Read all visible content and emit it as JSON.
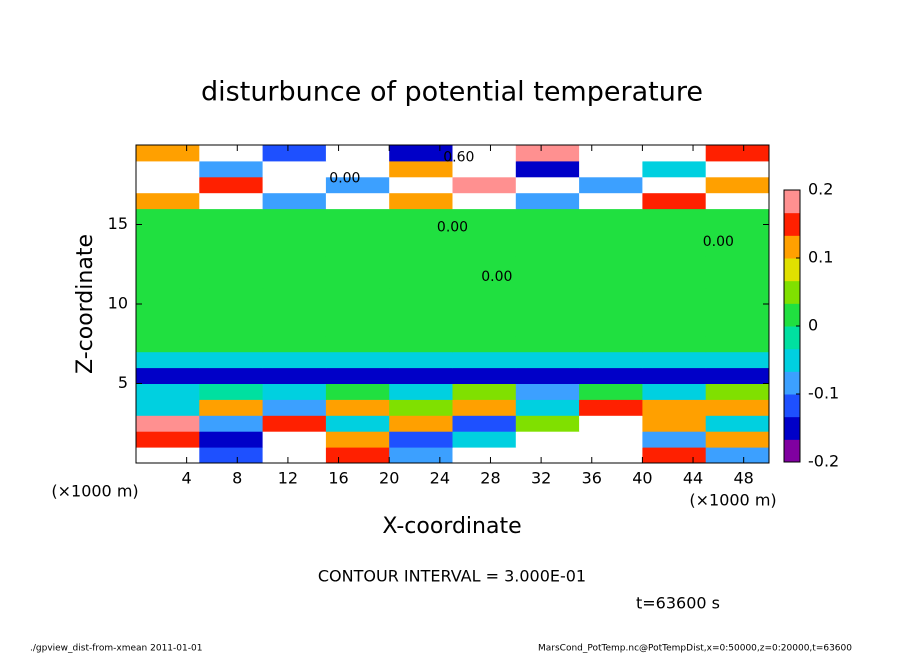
{
  "chart_data": {
    "type": "heatmap",
    "title": "disturbunce of potential temperature",
    "x_label": "X-coordinate",
    "y_label": "Z-coordinate",
    "x_unit": "(×1000 m)",
    "xlim": [
      0,
      50
    ],
    "ylim": [
      0,
      20
    ],
    "xticks": [
      4,
      8,
      12,
      16,
      20,
      24,
      28,
      32,
      36,
      40,
      44,
      48
    ],
    "yticks": [
      5,
      10,
      15
    ],
    "x_edges": [
      0,
      5,
      10,
      15,
      20,
      25,
      30,
      35,
      40,
      45,
      50
    ],
    "y_edges": [
      0,
      1,
      2,
      3,
      4,
      5,
      6,
      7,
      8,
      9,
      10,
      11,
      12,
      13,
      14,
      15,
      16,
      17,
      18,
      19,
      20
    ],
    "z": [
      [
        0.25,
        -0.12,
        0.25,
        0.15,
        -0.1,
        0.25,
        0.25,
        0.25,
        0.15,
        -0.1
      ],
      [
        0.15,
        -0.15,
        0.25,
        0.12,
        -0.12,
        -0.05,
        0.25,
        0.25,
        -0.1,
        0.1
      ],
      [
        0.2,
        -0.1,
        0.15,
        -0.05,
        0.1,
        -0.12,
        0.05,
        0.25,
        0.12,
        -0.05
      ],
      [
        -0.05,
        0.12,
        -0.08,
        0.1,
        0.05,
        0.1,
        -0.05,
        0.15,
        0.1,
        0.12
      ],
      [
        -0.05,
        -0.02,
        -0.05,
        0.02,
        -0.05,
        0.05,
        -0.1,
        0.02,
        -0.05,
        0.05
      ],
      [
        -0.15,
        -0.15,
        -0.15,
        -0.15,
        -0.15,
        -0.15,
        -0.15,
        -0.15,
        -0.15,
        -0.15
      ],
      [
        -0.05,
        -0.05,
        -0.05,
        -0.05,
        -0.05,
        -0.05,
        -0.05,
        -0.05,
        -0.05,
        -0.05
      ],
      [
        0,
        0,
        0,
        0,
        0,
        0,
        0,
        0,
        0,
        0
      ],
      [
        0,
        0,
        0,
        0,
        0,
        0,
        0,
        0,
        0,
        0
      ],
      [
        0,
        0,
        0,
        0,
        0,
        0,
        0,
        0,
        0,
        0
      ],
      [
        0,
        0,
        0,
        0,
        0,
        0,
        0,
        0,
        0,
        0
      ],
      [
        0,
        0,
        0,
        0,
        0,
        0,
        0,
        0,
        0,
        0
      ],
      [
        0,
        0,
        0,
        0,
        0,
        0,
        0,
        0,
        0,
        0
      ],
      [
        0,
        0,
        0,
        0,
        0,
        0,
        0,
        0,
        0,
        0
      ],
      [
        0,
        0,
        0,
        0,
        0,
        0,
        0,
        0,
        0,
        0
      ],
      [
        0,
        0,
        0,
        0,
        0,
        0,
        0,
        0,
        0,
        0
      ],
      [
        0.1,
        0.25,
        -0.08,
        0.25,
        0.12,
        0.25,
        -0.1,
        0.25,
        0.15,
        0.25
      ],
      [
        0.25,
        0.15,
        0.25,
        -0.1,
        0.25,
        0.2,
        0.25,
        -0.08,
        0.25,
        0.1
      ],
      [
        0.25,
        -0.1,
        0.25,
        0.25,
        0.12,
        0.25,
        -0.15,
        0.25,
        -0.05,
        0.25
      ],
      [
        0.12,
        0.25,
        -0.12,
        0.25,
        -0.15,
        0.25,
        0.2,
        0.25,
        0.25,
        0.15
      ]
    ],
    "clim": [
      -0.2,
      0.2
    ],
    "colorbar_ticks": [
      -0.2,
      -0.1,
      0,
      0.1,
      0.2
    ],
    "colors": [
      "#8000a0",
      "#0000c8",
      "#1e50ff",
      "#3ca0ff",
      "#00d0e0",
      "#00e0a0",
      "#20e040",
      "#80e000",
      "#e0e000",
      "#ffa000",
      "#ff2000",
      "#ff9090"
    ],
    "annotations": [
      {
        "text": "0.00",
        "x": 25,
        "y": 14.8
      },
      {
        "text": "0.00",
        "x": 46,
        "y": 13.9
      },
      {
        "text": "0.00",
        "x": 28.5,
        "y": 11.7
      },
      {
        "text": "0.60",
        "x": 25.5,
        "y": 19.2
      },
      {
        "text": "0.00",
        "x": 16.5,
        "y": 17.9
      }
    ],
    "contour_interval": "CONTOUR INTERVAL = 3.000E-01",
    "time_label": "t=63600 s",
    "footer_left": "./gpview_dist-from-xmean  2011-01-01",
    "footer_right": "MarsCond_PotTemp.nc@PotTempDist,x=0:50000,z=0:20000,t=63600"
  }
}
